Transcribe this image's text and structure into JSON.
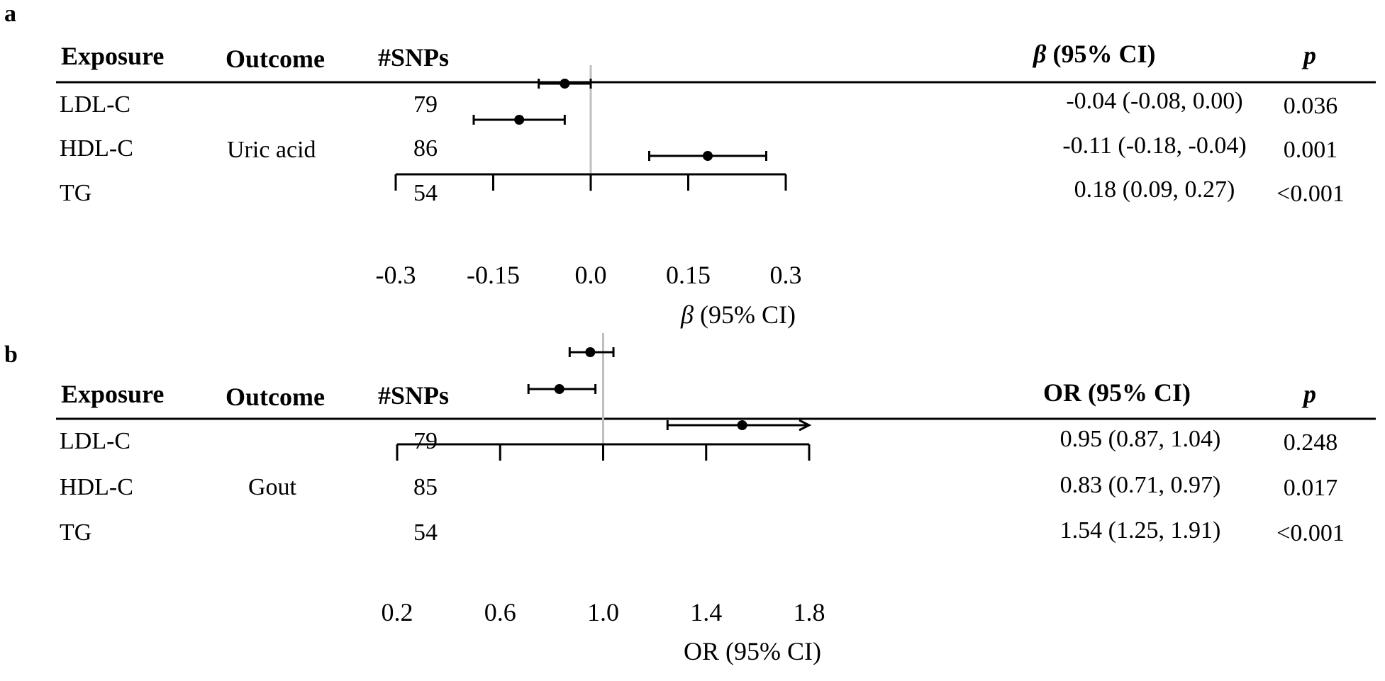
{
  "panels": [
    {
      "label": "a",
      "headers": {
        "exposure": "Exposure",
        "outcome": "Outcome",
        "snps": "#SNPs",
        "estimate_symbol": "β",
        "estimate_suffix": " (95% CI)",
        "p_symbol": "p"
      },
      "outcome": "Uric acid",
      "axis_title_symbol": "β",
      "axis_title_suffix": " (95% CI)",
      "tick_labels": [
        "-0.3",
        "-0.15",
        "0.0",
        "0.15",
        "0.3"
      ],
      "rows": [
        {
          "exposure": "LDL-C",
          "snps": "79",
          "estimate_text": "-0.04 (-0.08, 0.00)",
          "p_text": "0.036"
        },
        {
          "exposure": "HDL-C",
          "snps": "86",
          "estimate_text": "-0.11 (-0.18, -0.04)",
          "p_text": "0.001"
        },
        {
          "exposure": "TG",
          "snps": "54",
          "estimate_text": "0.18 (0.09, 0.27)",
          "p_text": "<0.001"
        }
      ]
    },
    {
      "label": "b",
      "headers": {
        "exposure": "Exposure",
        "outcome": "Outcome",
        "snps": "#SNPs",
        "estimate_symbol": "",
        "estimate_suffix": "OR (95% CI)",
        "p_symbol": "p"
      },
      "outcome": "Gout",
      "axis_title_symbol": "",
      "axis_title_suffix": "OR (95% CI)",
      "tick_labels": [
        "0.2",
        "0.6",
        "1.0",
        "1.4",
        "1.8"
      ],
      "rows": [
        {
          "exposure": "LDL-C",
          "snps": "79",
          "estimate_text": "0.95 (0.87, 1.04)",
          "p_text": "0.248"
        },
        {
          "exposure": "HDL-C",
          "snps": "85",
          "estimate_text": "0.83 (0.71, 0.97)",
          "p_text": "0.017"
        },
        {
          "exposure": "TG",
          "snps": "54",
          "estimate_text": "1.54 (1.25, 1.91)",
          "p_text": "<0.001"
        }
      ]
    }
  ],
  "chart_data": [
    {
      "type": "forest",
      "title": "",
      "xlabel": "β (95% CI)",
      "xlim": [
        -0.3,
        0.3
      ],
      "xticks": [
        -0.3,
        -0.15,
        0.0,
        0.15,
        0.3
      ],
      "reference_line": 0.0,
      "categories": [
        "LDL-C",
        "HDL-C",
        "TG"
      ],
      "estimate": [
        -0.04,
        -0.11,
        0.18
      ],
      "lower": [
        -0.08,
        -0.18,
        0.09
      ],
      "upper": [
        0.0,
        -0.04,
        0.27
      ],
      "grid": false
    },
    {
      "type": "forest",
      "title": "",
      "xlabel": "OR (95% CI)",
      "xlim": [
        0.2,
        1.8
      ],
      "xticks": [
        0.2,
        0.6,
        1.0,
        1.4,
        1.8
      ],
      "reference_line": 1.0,
      "categories": [
        "LDL-C",
        "HDL-C",
        "TG"
      ],
      "estimate": [
        0.95,
        0.83,
        1.54
      ],
      "lower": [
        0.87,
        0.71,
        1.25
      ],
      "upper": [
        1.04,
        0.97,
        1.91
      ],
      "grid": false
    }
  ],
  "colors": {
    "ink": "#000000",
    "reference_line": "#bfbfbf",
    "background": "#ffffff"
  }
}
